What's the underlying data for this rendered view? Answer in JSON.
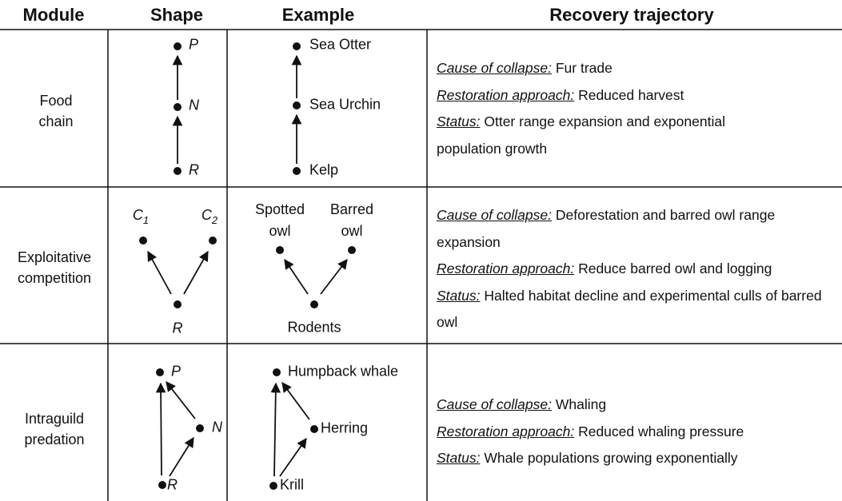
{
  "table": {
    "headers": [
      "Module",
      "Shape",
      "Example",
      "Recovery trajectory"
    ],
    "rows": [
      {
        "module": "Food chain",
        "shape": {
          "nodes": [
            {
              "label": "P"
            },
            {
              "label": "N"
            },
            {
              "label": "R"
            }
          ]
        },
        "example": {
          "nodes": [
            "Sea Otter",
            "Sea Urchin",
            "Kelp"
          ]
        },
        "trajectory": [
          {
            "label": "Cause of collapse:",
            "text": "Fur trade"
          },
          {
            "label": "Restoration approach:",
            "text": "Reduced harvest"
          },
          {
            "label": "Status:",
            "text": "Otter range expansion and exponential population growth"
          }
        ]
      },
      {
        "module": "Exploitative competition",
        "shape": {
          "nodes": [
            {
              "label": "C",
              "subscript": "1"
            },
            {
              "label": "C",
              "subscript": "2"
            },
            {
              "label": "R"
            }
          ]
        },
        "example": {
          "nodes": [
            "Spotted owl",
            "Barred owl",
            "Rodents"
          ]
        },
        "trajectory": [
          {
            "label": "Cause of collapse:",
            "text": "Deforestation and barred owl range expansion"
          },
          {
            "label": "Restoration approach:",
            "text": "Reduce barred owl and logging"
          },
          {
            "label": "Status:",
            "text": "Halted habitat decline and experimental culls of barred owl"
          }
        ]
      },
      {
        "module": "Intraguild predation",
        "shape": {
          "nodes": [
            {
              "label": "P"
            },
            {
              "label": "N"
            },
            {
              "label": "R"
            }
          ]
        },
        "example": {
          "nodes": [
            "Humpback whale",
            "Herring",
            "Krill"
          ]
        },
        "trajectory": [
          {
            "label": "Cause of collapse:",
            "text": "Whaling"
          },
          {
            "label": "Restoration approach:",
            "text": "Reduced whaling pressure"
          },
          {
            "label": "Status:",
            "text": "Whale populations growing exponentially"
          }
        ]
      }
    ]
  }
}
